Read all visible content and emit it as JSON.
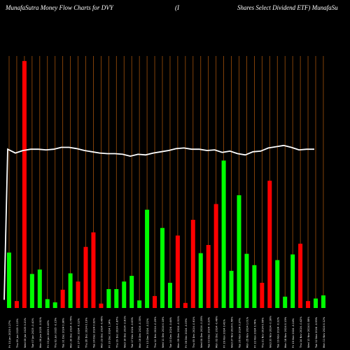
{
  "header": {
    "left": "MunafaSutra  Money Flow  Charts for DVY",
    "center": "(I",
    "right": "Shares Select Dividend ETF) MunafaSu"
  },
  "colors": {
    "background": "#000000",
    "up": "#00ff00",
    "down": "#ff0000",
    "grid": "#a0500a",
    "price_line": "#ffffff",
    "tick_text": "#ffffff"
  },
  "chart_data": {
    "type": "bar",
    "categories": [
      "Fri 10 Jan 2025",
      "Thu 09 Jan 2025",
      "Wed 08 Jan 2025",
      "Tue 07 Jan 2025",
      "Mon 06 Jan 2025",
      "Fri 03 Jan 2025",
      "Thu 02 Jan 2025",
      "Tue 31 Dec 2024",
      "Mon 30 Dec 2024",
      "Fri 27 Dec 2024",
      "Thu 26 Dec 2024",
      "Tue 24 Dec 2024",
      "Mon 23 Dec 2024",
      "Fri 20 Dec 2024",
      "Thu 19 Dec 2024",
      "Wed 18 Dec 2024",
      "Tue 17 Dec 2024",
      "Mon 16 Dec 2024",
      "Fri 13 Dec 2024",
      "Thu 12 Dec 2024",
      "Wed 11 Dec 2024",
      "Tue 10 Dec 2024",
      "Mon 09 Dec 2024",
      "Fri 06 Dec 2024",
      "Thu 05 Dec 2024",
      "Wed 04 Dec 2024",
      "Tue 03 Dec 2024",
      "Mon 02 Dec 2024",
      "Fri 29 Nov 2024",
      "Wed 27 Nov 2024",
      "Tue 26 Nov 2024",
      "Mon 25 Nov 2024",
      "Fri 22 Nov 2024",
      "Thu 21 Nov 2024",
      "Wed 20 Nov 2024",
      "Tue 19 Nov 2024",
      "Mon 18 Nov 2024",
      "Fri 15 Nov 2024",
      "Thu 14 Nov 2024",
      "Wed 13 Nov 2024",
      "Tue 12 Nov 2024",
      "Mon 11 Nov 2024"
    ],
    "tick_labels": [
      "Fri 10 Jan 2025 0.27%",
      "Thu 09 Jan 2025 0.13%",
      "Wed 08 Jan 2025 0.21%",
      "Tue 07 Jan 2025 -0.41%",
      "Mon 06 Jan 2025 -0.52%",
      "Fri 03 Jan 2025 0.43%",
      "Thu 02 Jan 2025 -0.15%",
      "Tue 31 Dec 2024 0.38%",
      "Mon 30 Dec 2024 -0.76%",
      "Fri 27 Dec 2024 -0.12%",
      "Thu 26 Dec 2024 0.19%",
      "Tue 24 Dec 2024 0.92%",
      "Mon 23 Dec 2024 -0.46%",
      "Fri 20 Dec 2024 1.14%",
      "Thu 19 Dec 2024 -0.87%",
      "Wed 18 Dec 2024 -2.81%",
      "Tue 17 Dec 2024 -0.63%",
      "Mon 16 Dec 2024 -0.35%",
      "Fri 13 Dec 2024 -0.22%",
      "Thu 12 Dec 2024 -0.29%",
      "Wed 11 Dec 2024 0.18%",
      "Tue 10 Dec 2024 -0.44%",
      "Mon 09 Dec 2024 -0.51%",
      "Fri 06 Dec 2024 -0.09%",
      "Thu 05 Dec 2024 -0.61%",
      "Wed 04 Dec 2024 -0.25%",
      "Tue 03 Dec 2024 -0.33%",
      "Mon 02 Dec 2024 -0.48%",
      "Fri 29 Nov 2024 0.41%",
      "Wed 27 Nov 2024 0.56%",
      "Tue 26 Nov 2024 0.37%",
      "Mon 25 Nov 2024 1.01%",
      "Fri 22 Nov 2024 0.74%",
      "Thu 21 Nov 2024 0.66%",
      "Wed 20 Nov 2024 -0.18%",
      "Tue 19 Nov 2024 -0.32%",
      "Mon 18 Nov 2024 0.15%",
      "Fri 15 Nov 2024 -0.24%",
      "Thu 14 Nov 2024 -0.42%",
      "Wed 13 Nov 2024 0.08%",
      "Tue 12 Nov 2024 -0.95%",
      "Mon 11 Nov 2024 0.12%"
    ],
    "series": [
      {
        "values": [
          88,
          11,
          392,
          54,
          61,
          14,
          9,
          29,
          55,
          42,
          97,
          120,
          7,
          30,
          30,
          42,
          51,
          12,
          156,
          19,
          127,
          40,
          115,
          8,
          140,
          87,
          100,
          165,
          234,
          59,
          179,
          86,
          68,
          40,
          202,
          76,
          18,
          85,
          102,
          11,
          15,
          20
        ],
        "direction": [
          "up",
          "down",
          "down",
          "up",
          "up",
          "up",
          "up",
          "down",
          "up",
          "down",
          "down",
          "down",
          "down",
          "up",
          "up",
          "up",
          "up",
          "up",
          "up",
          "down",
          "up",
          "up",
          "down",
          "down",
          "down",
          "up",
          "down",
          "down",
          "up",
          "up",
          "up",
          "up",
          "up",
          "down",
          "down",
          "up",
          "up",
          "up",
          "down",
          "down",
          "up",
          "up"
        ]
      }
    ],
    "price_line": [
      13,
      252,
      246,
      250,
      252,
      252,
      251,
      252,
      255,
      255,
      253,
      250,
      248,
      246,
      245,
      245,
      244,
      241,
      244,
      243,
      246,
      248,
      250,
      253,
      254,
      252,
      252,
      250,
      251,
      247,
      249,
      245,
      243,
      248,
      249,
      254,
      256,
      258,
      255,
      251,
      252,
      252
    ],
    "ylim": [
      0,
      400
    ],
    "grid": true
  }
}
